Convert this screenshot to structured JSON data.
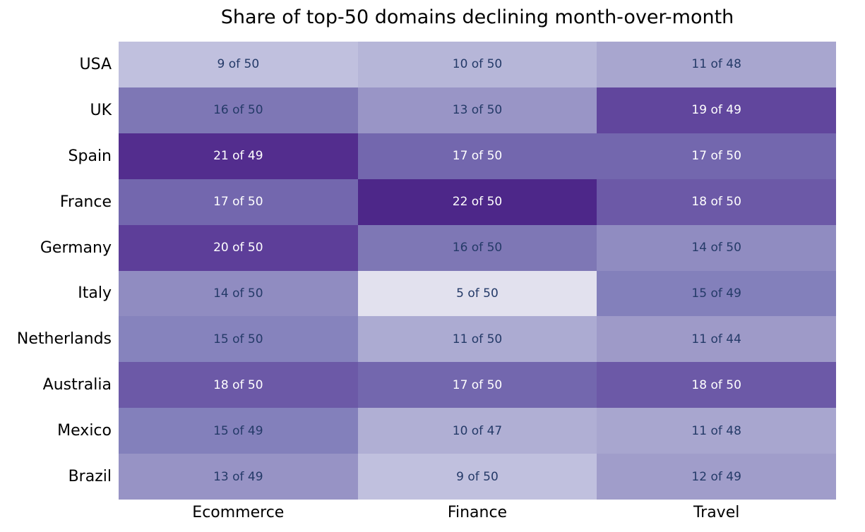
{
  "figure": {
    "background": "#ffffff",
    "text_dark": "#243a68",
    "text_light": "#ffffff"
  },
  "chart_data": {
    "type": "heatmap",
    "title": "Share of top-50 domains declining month-over-month",
    "columns": [
      "Ecommerce",
      "Finance",
      "Travel"
    ],
    "rows": [
      "USA",
      "UK",
      "Spain",
      "France",
      "Germany",
      "Italy",
      "Netherlands",
      "Australia",
      "Mexico",
      "Brazil"
    ],
    "colormap": "Purples",
    "legend_position": "none",
    "grid_lines": "off",
    "cell_value_format": "{declining} of {total}",
    "cells": [
      [
        {
          "label": "9 of 50",
          "declining": 9,
          "total": 50,
          "bg": "#c0c0de",
          "fg": "#243a68"
        },
        {
          "label": "10 of 50",
          "declining": 10,
          "total": 50,
          "bg": "#b6b6d8",
          "fg": "#243a68"
        },
        {
          "label": "11 of 48",
          "declining": 11,
          "total": 48,
          "bg": "#a8a6cf",
          "fg": "#243a68"
        }
      ],
      [
        {
          "label": "16 of 50",
          "declining": 16,
          "total": 50,
          "bg": "#7e77b5",
          "fg": "#243a68"
        },
        {
          "label": "13 of 50",
          "declining": 13,
          "total": 50,
          "bg": "#9995c6",
          "fg": "#243a68"
        },
        {
          "label": "19 of 49",
          "declining": 19,
          "total": 49,
          "bg": "#61469d",
          "fg": "#ffffff"
        }
      ],
      [
        {
          "label": "21 of 49",
          "declining": 21,
          "total": 49,
          "bg": "#532d8e",
          "fg": "#ffffff"
        },
        {
          "label": "17 of 50",
          "declining": 17,
          "total": 50,
          "bg": "#7367ae",
          "fg": "#ffffff"
        },
        {
          "label": "17 of 50",
          "declining": 17,
          "total": 50,
          "bg": "#7367ae",
          "fg": "#ffffff"
        }
      ],
      [
        {
          "label": "17 of 50",
          "declining": 17,
          "total": 50,
          "bg": "#7367ae",
          "fg": "#ffffff"
        },
        {
          "label": "22 of 50",
          "declining": 22,
          "total": 50,
          "bg": "#4d2789",
          "fg": "#ffffff"
        },
        {
          "label": "18 of 50",
          "declining": 18,
          "total": 50,
          "bg": "#6c59a7",
          "fg": "#ffffff"
        }
      ],
      [
        {
          "label": "20 of 50",
          "declining": 20,
          "total": 50,
          "bg": "#5d3e99",
          "fg": "#ffffff"
        },
        {
          "label": "16 of 50",
          "declining": 16,
          "total": 50,
          "bg": "#7e77b5",
          "fg": "#243a68"
        },
        {
          "label": "14 of 50",
          "declining": 14,
          "total": 50,
          "bg": "#908cc1",
          "fg": "#243a68"
        }
      ],
      [
        {
          "label": "14 of 50",
          "declining": 14,
          "total": 50,
          "bg": "#908cc1",
          "fg": "#243a68"
        },
        {
          "label": "5 of 50",
          "declining": 5,
          "total": 50,
          "bg": "#e2e1ee",
          "fg": "#243a68"
        },
        {
          "label": "15 of 49",
          "declining": 15,
          "total": 49,
          "bg": "#8380bb",
          "fg": "#243a68"
        }
      ],
      [
        {
          "label": "15 of 50",
          "declining": 15,
          "total": 50,
          "bg": "#8683bd",
          "fg": "#243a68"
        },
        {
          "label": "11 of 50",
          "declining": 11,
          "total": 50,
          "bg": "#acabd2",
          "fg": "#243a68"
        },
        {
          "label": "11 of 44",
          "declining": 11,
          "total": 44,
          "bg": "#9e9ac8",
          "fg": "#243a68"
        }
      ],
      [
        {
          "label": "18 of 50",
          "declining": 18,
          "total": 50,
          "bg": "#6c59a7",
          "fg": "#ffffff"
        },
        {
          "label": "17 of 50",
          "declining": 17,
          "total": 50,
          "bg": "#7367ae",
          "fg": "#ffffff"
        },
        {
          "label": "18 of 50",
          "declining": 18,
          "total": 50,
          "bg": "#6c59a7",
          "fg": "#ffffff"
        }
      ],
      [
        {
          "label": "15 of 49",
          "declining": 15,
          "total": 49,
          "bg": "#8380bb",
          "fg": "#243a68"
        },
        {
          "label": "10 of 47",
          "declining": 10,
          "total": 47,
          "bg": "#b0afd4",
          "fg": "#243a68"
        },
        {
          "label": "11 of 48",
          "declining": 11,
          "total": 48,
          "bg": "#a8a6cf",
          "fg": "#243a68"
        }
      ],
      [
        {
          "label": "13 of 49",
          "declining": 13,
          "total": 49,
          "bg": "#9793c5",
          "fg": "#243a68"
        },
        {
          "label": "9 of 50",
          "declining": 9,
          "total": 50,
          "bg": "#c0c0de",
          "fg": "#243a68"
        },
        {
          "label": "12 of 49",
          "declining": 12,
          "total": 49,
          "bg": "#a09dca",
          "fg": "#243a68"
        }
      ]
    ]
  }
}
